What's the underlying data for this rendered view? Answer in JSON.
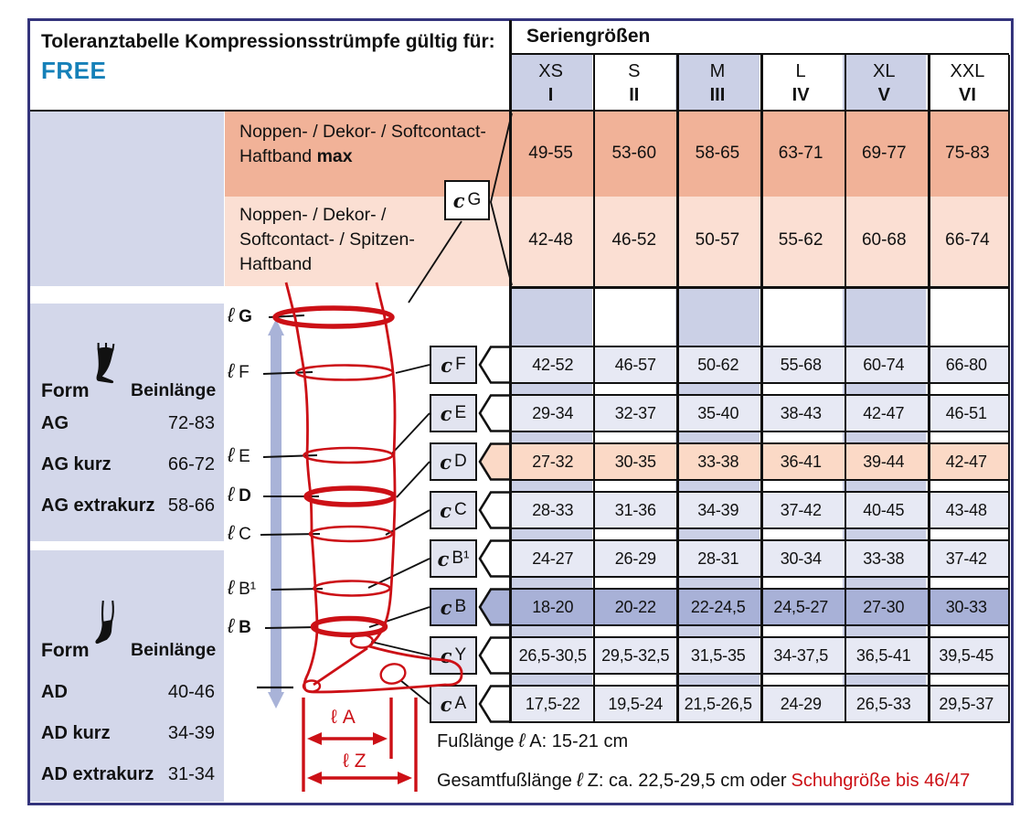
{
  "title": {
    "heading": "Toleranztabelle Kompressionsstrümpfe gültig für:",
    "brand": "FREE"
  },
  "series": {
    "label": "Seriengrößen",
    "sizes": [
      {
        "size": "XS",
        "numeral": "I"
      },
      {
        "size": "S",
        "numeral": "II"
      },
      {
        "size": "M",
        "numeral": "III"
      },
      {
        "size": "L",
        "numeral": "IV"
      },
      {
        "size": "XL",
        "numeral": "V"
      },
      {
        "size": "XXL",
        "numeral": "VI"
      }
    ]
  },
  "circumference_symbol": "c",
  "length_symbol": "ℓ",
  "haftband_rows": [
    {
      "line1": "Noppen- / Dekor- / Softcontact-",
      "line2": "Haftband",
      "line2_bold": "max",
      "values": [
        "49-55",
        "53-60",
        "58-65",
        "63-71",
        "69-77",
        "75-83"
      ]
    },
    {
      "line1": "Noppen- / Dekor- /",
      "line2": "Softcontact- / Spitzen-",
      "line3": "Haftband",
      "values": [
        "42-48",
        "46-52",
        "50-57",
        "55-62",
        "60-68",
        "66-74"
      ]
    }
  ],
  "cg_box": {
    "letter": "G"
  },
  "rows": [
    {
      "letter": "F",
      "style": "normal",
      "values": [
        "42-52",
        "46-57",
        "50-62",
        "55-68",
        "60-74",
        "66-80"
      ]
    },
    {
      "letter": "E",
      "style": "normal",
      "values": [
        "29-34",
        "32-37",
        "35-40",
        "38-43",
        "42-47",
        "46-51"
      ]
    },
    {
      "letter": "D",
      "style": "peach",
      "values": [
        "27-32",
        "30-35",
        "33-38",
        "36-41",
        "39-44",
        "42-47"
      ]
    },
    {
      "letter": "C",
      "style": "normal",
      "values": [
        "28-33",
        "31-36",
        "34-39",
        "37-42",
        "40-45",
        "43-48"
      ]
    },
    {
      "letter": "B¹",
      "style": "normal",
      "values": [
        "24-27",
        "26-29",
        "28-31",
        "30-34",
        "33-38",
        "37-42"
      ]
    },
    {
      "letter": "B",
      "style": "dark",
      "values": [
        "18-20",
        "20-22",
        "22-24,5",
        "24,5-27",
        "27-30",
        "30-33"
      ]
    },
    {
      "letter": "Y",
      "style": "normal",
      "values": [
        "26,5-30,5",
        "29,5-32,5",
        "31,5-35",
        "34-37,5",
        "36,5-41",
        "39,5-45"
      ]
    },
    {
      "letter": "A",
      "style": "normal",
      "values": [
        "17,5-22",
        "19,5-24",
        "21,5-26,5",
        "24-29",
        "26,5-33",
        "29,5-37"
      ]
    }
  ],
  "leg_labels": [
    {
      "letter": "G",
      "bold": true
    },
    {
      "letter": "F",
      "bold": false
    },
    {
      "letter": "E",
      "bold": false
    },
    {
      "letter": "D",
      "bold": true
    },
    {
      "letter": "C",
      "bold": false
    },
    {
      "letter": "B¹",
      "bold": false
    },
    {
      "letter": "B",
      "bold": true
    }
  ],
  "panels": [
    {
      "form_label": "Form",
      "length_label": "Beinlänge",
      "icon": "thigh-stocking-icon",
      "rows": [
        {
          "name": "AG",
          "range": "72-83"
        },
        {
          "name": "AG kurz",
          "range": "66-72"
        },
        {
          "name": "AG extrakurz",
          "range": "58-66"
        }
      ]
    },
    {
      "form_label": "Form",
      "length_label": "Beinlänge",
      "icon": "knee-sock-icon",
      "rows": [
        {
          "name": "AD",
          "range": "40-46"
        },
        {
          "name": "AD kurz",
          "range": "34-39"
        },
        {
          "name": "AD extrakurz",
          "range": "31-34"
        }
      ]
    }
  ],
  "foot_measures": {
    "la": "A",
    "lz": "Z"
  },
  "notes": {
    "foot_length": {
      "pre": "Fußlänge",
      "post": "A: 15-21 cm"
    },
    "total_foot_length": {
      "pre": "Gesamtfußlänge",
      "post": "Z: ca. 22,5-29,5 cm oder",
      "red": "Schuhgröße bis 46/47"
    }
  },
  "colors": {
    "frame_navy": "#34347c",
    "line_black": "#111111",
    "stripe_lavender": "#cbd0e6",
    "panel_lavender": "#d3d7ea",
    "cell_light": "#e7e9f4",
    "cell_dark": "#a8b1d7",
    "cell_peach": "#fbd9c6",
    "row_orange_dark": "#f1b298",
    "row_orange_light": "#fbdfd3",
    "accent_red": "#cc1016",
    "brand_blue": "#1580b8"
  }
}
